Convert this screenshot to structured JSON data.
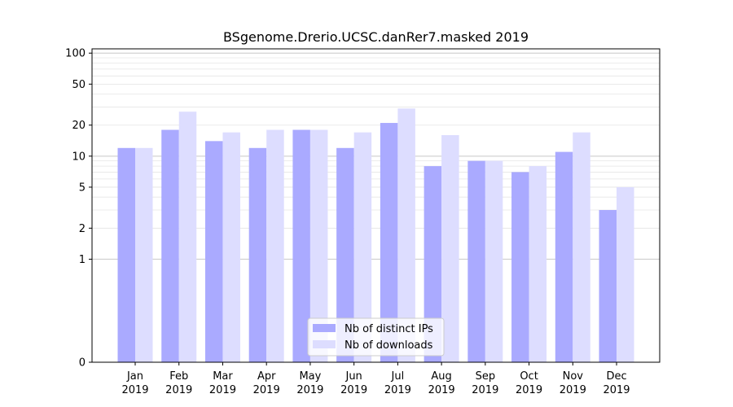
{
  "chart_data": {
    "type": "bar",
    "title": "BSgenome.Drerio.UCSC.danRer7.masked 2019",
    "xlabel": "",
    "ylabel": "",
    "yscale": "symlog",
    "ylim": [
      0,
      110
    ],
    "grid": true,
    "legend_position": "bottom-center",
    "categories": [
      [
        "Jan",
        "2019"
      ],
      [
        "Feb",
        "2019"
      ],
      [
        "Mar",
        "2019"
      ],
      [
        "Apr",
        "2019"
      ],
      [
        "May",
        "2019"
      ],
      [
        "Jun",
        "2019"
      ],
      [
        "Jul",
        "2019"
      ],
      [
        "Aug",
        "2019"
      ],
      [
        "Sep",
        "2019"
      ],
      [
        "Oct",
        "2019"
      ],
      [
        "Nov",
        "2019"
      ],
      [
        "Dec",
        "2019"
      ]
    ],
    "y_ticks": [
      {
        "value": 0,
        "label": "0"
      },
      {
        "value": 1,
        "label": "1"
      },
      {
        "value": 2,
        "label": "2"
      },
      {
        "value": 5,
        "label": "5"
      },
      {
        "value": 10,
        "label": "10"
      },
      {
        "value": 20,
        "label": "20"
      },
      {
        "value": 50,
        "label": "50"
      },
      {
        "value": 100,
        "label": "100"
      }
    ],
    "series": [
      {
        "name": "Nb of distinct IPs",
        "color": "#aaaaff",
        "values": [
          12,
          18,
          14,
          12,
          18,
          12,
          21,
          8,
          9,
          7,
          11,
          3
        ]
      },
      {
        "name": "Nb of downloads",
        "color": "#ddddff",
        "values": [
          12,
          27,
          17,
          18,
          18,
          17,
          29,
          16,
          9,
          8,
          17,
          5
        ]
      }
    ]
  }
}
